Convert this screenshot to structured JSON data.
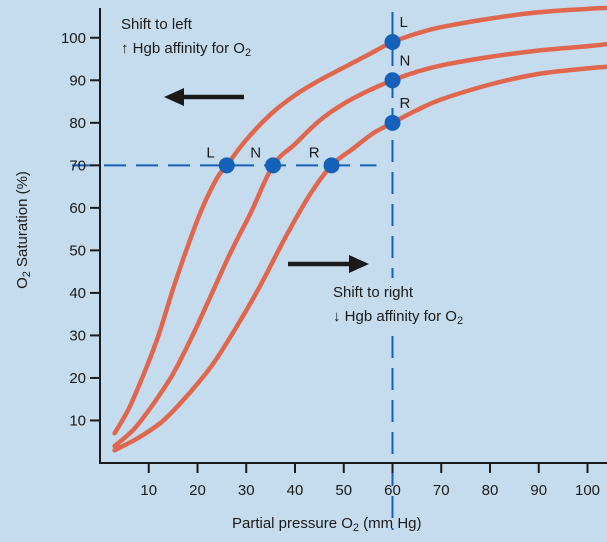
{
  "chart_data": {
    "type": "line",
    "xlabel_prefix": "Partial pressure O",
    "xlabel_sub": "2",
    "xlabel_suffix": " (mm Hg)",
    "ylabel_prefix": "O",
    "ylabel_sub": "2",
    "ylabel_suffix": " Saturation (%)",
    "xlim": [
      0,
      104
    ],
    "ylim": [
      0,
      107
    ],
    "x_ticks": [
      10,
      20,
      30,
      40,
      50,
      60,
      70,
      80,
      90,
      100
    ],
    "y_ticks": [
      10,
      20,
      30,
      40,
      50,
      60,
      70,
      80,
      90,
      100
    ],
    "series": [
      {
        "name": "L",
        "x": [
          3,
          6,
          9,
          12,
          15,
          18,
          21,
          24,
          26,
          30,
          35,
          40,
          45,
          50,
          55,
          60,
          65,
          70,
          80,
          90,
          100,
          104
        ],
        "y": [
          7,
          13,
          21,
          30,
          41,
          51,
          60,
          67,
          70,
          76,
          82,
          86.5,
          90,
          93,
          96,
          99,
          101,
          102.5,
          104.5,
          106,
          106.8,
          107
        ]
      },
      {
        "name": "N",
        "x": [
          3,
          7,
          11,
          15,
          19,
          23,
          27,
          31,
          35.5,
          40,
          45,
          50,
          55,
          60,
          65,
          70,
          80,
          90,
          100,
          104
        ],
        "y": [
          4,
          8,
          14,
          21,
          30,
          40,
          50,
          59,
          70,
          75,
          80.5,
          84.5,
          87.5,
          90,
          92,
          93.5,
          95.5,
          97,
          98,
          98.5
        ]
      },
      {
        "name": "R",
        "x": [
          3,
          8,
          13,
          18,
          23,
          28,
          33,
          38,
          43,
          47.5,
          52,
          56,
          60,
          65,
          70,
          80,
          90,
          100,
          104
        ],
        "y": [
          3,
          6,
          10,
          16,
          23,
          32,
          42,
          53,
          63,
          70,
          74,
          77.5,
          80,
          83,
          85.5,
          89,
          91.5,
          92.8,
          93.2
        ]
      }
    ],
    "points": [
      {
        "x": 26,
        "y": 70,
        "label": "L"
      },
      {
        "x": 35.5,
        "y": 70,
        "label": "N"
      },
      {
        "x": 47.5,
        "y": 70,
        "label": "R"
      },
      {
        "x": 60,
        "y": 99,
        "label": "L"
      },
      {
        "x": 60,
        "y": 90,
        "label": "N"
      },
      {
        "x": 60,
        "y": 80,
        "label": "R"
      }
    ],
    "reference_lines": {
      "horizontal_y": 70,
      "vertical_x": 60
    },
    "annotations": {
      "left_title": "Shift to left",
      "left_text_prefix": "Hgb affinity for O",
      "left_text_sub": "2",
      "right_title": "Shift to right",
      "right_text_prefix": "Hgb affinity for O",
      "right_text_sub": "2"
    },
    "colors": {
      "background": "#c4dced",
      "curve": "#e0674e",
      "point": "#1560b8",
      "dashed": "#1560b8",
      "axis": "#1a1a1a",
      "arrow": "#1a1a1a"
    }
  }
}
